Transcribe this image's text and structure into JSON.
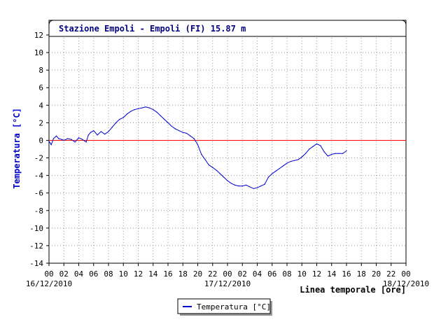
{
  "chart_data": {
    "type": "line",
    "title": "Stazione Empoli - Empoli (FI) 15.87 m",
    "ylabel": "Temperatura [°C]",
    "xlabel": "Linea temporale [ore]",
    "ylim": [
      -14,
      12
    ],
    "yticks": [
      12,
      10,
      8,
      6,
      4,
      2,
      0,
      -2,
      -4,
      -6,
      -8,
      -10,
      -12,
      -14
    ],
    "xlim": [
      0,
      48
    ],
    "xtick_labels": [
      "00",
      "02",
      "04",
      "06",
      "08",
      "10",
      "12",
      "14",
      "16",
      "18",
      "20",
      "22",
      "00",
      "02",
      "04",
      "06",
      "08",
      "10",
      "12",
      "14",
      "16",
      "18",
      "20",
      "22",
      "00"
    ],
    "date_labels": [
      {
        "hour": 0,
        "label": "16/12/2010"
      },
      {
        "hour": 24,
        "label": "17/12/2010"
      },
      {
        "hour": 48,
        "label": "18/12/2010"
      }
    ],
    "reference_line": {
      "y": 0,
      "color": "#ff0000"
    },
    "grid": true,
    "legend": {
      "position": "bottom-center",
      "entries": [
        "Temperatura [°C]"
      ]
    },
    "series": [
      {
        "name": "Temperatura [°C]",
        "color": "#0000cc",
        "x": [
          0,
          0.3,
          0.6,
          1.0,
          1.3,
          1.7,
          2.0,
          2.5,
          3.0,
          3.5,
          4.0,
          4.5,
          5.0,
          5.3,
          5.6,
          6.0,
          6.5,
          7.0,
          7.5,
          8.0,
          8.5,
          9.0,
          9.5,
          10.0,
          10.5,
          11.0,
          11.5,
          12.0,
          12.5,
          13.0,
          13.5,
          14.0,
          14.5,
          15.0,
          15.5,
          16.0,
          16.5,
          17.0,
          17.5,
          18.0,
          18.5,
          19.0,
          19.5,
          20.0,
          20.5,
          21.0,
          21.5,
          22.0,
          22.5,
          23.0,
          23.5,
          24.0,
          24.5,
          25.0,
          25.5,
          26.0,
          26.5,
          27.0,
          27.5,
          28.0,
          28.5,
          29.0,
          29.5,
          30.0,
          30.5,
          31.0,
          31.5,
          32.0,
          32.5,
          33.0,
          33.5,
          34.0,
          34.5,
          35.0,
          35.5,
          36.0,
          36.5,
          37.0,
          37.5,
          38.0,
          38.5,
          39.0,
          39.5,
          40.0
        ],
        "y": [
          -0.1,
          -0.5,
          0.2,
          0.5,
          0.2,
          0.1,
          0.0,
          0.2,
          0.1,
          -0.2,
          0.3,
          0.1,
          -0.2,
          0.6,
          0.9,
          1.1,
          0.6,
          1.0,
          0.7,
          1.0,
          1.5,
          2.0,
          2.4,
          2.6,
          3.0,
          3.3,
          3.5,
          3.6,
          3.7,
          3.8,
          3.7,
          3.5,
          3.2,
          2.8,
          2.4,
          2.0,
          1.6,
          1.3,
          1.1,
          0.9,
          0.8,
          0.5,
          0.2,
          -0.5,
          -1.6,
          -2.2,
          -2.8,
          -3.1,
          -3.4,
          -3.8,
          -4.2,
          -4.6,
          -4.9,
          -5.1,
          -5.2,
          -5.2,
          -5.1,
          -5.3,
          -5.5,
          -5.4,
          -5.2,
          -5.0,
          -4.2,
          -3.8,
          -3.5,
          -3.2,
          -2.9,
          -2.6,
          -2.4,
          -2.3,
          -2.2,
          -1.9,
          -1.5,
          -1.0,
          -0.7,
          -0.4,
          -0.6,
          -1.3,
          -1.8,
          -1.6,
          -1.5,
          -1.5,
          -1.5,
          -1.2
        ]
      }
    ]
  }
}
